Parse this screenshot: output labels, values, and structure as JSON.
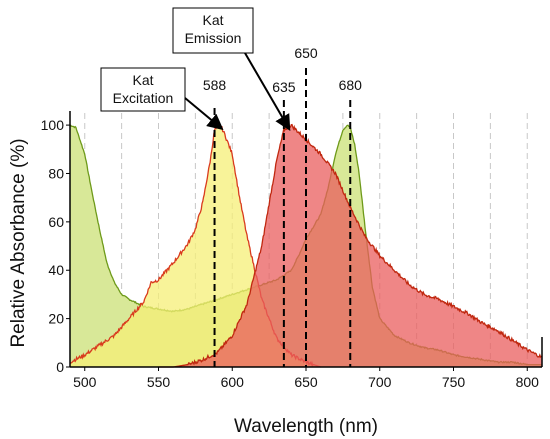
{
  "chart_data": {
    "type": "area",
    "xlabel": "Wavelength (nm)",
    "ylabel": "Relative Absorbance (%)",
    "xlim": [
      490,
      810
    ],
    "ylim": [
      0,
      105
    ],
    "x_ticks": [
      500,
      550,
      600,
      650,
      700,
      750,
      800
    ],
    "y_ticks": [
      0,
      20,
      40,
      60,
      80,
      100
    ],
    "grid_x": [
      500,
      525,
      550,
      575,
      600,
      625,
      650,
      675,
      700,
      725,
      750,
      775,
      800
    ],
    "grid": "vertical dashed",
    "series": [
      {
        "fill": "#d8e898",
        "line": "#6e9a1a",
        "x": [
          490,
          494,
          500,
          505,
          510,
          515,
          520,
          525,
          530,
          540,
          550,
          560,
          570,
          580,
          590,
          600,
          610,
          620,
          630,
          640,
          645,
          650,
          655,
          660,
          665,
          670,
          675,
          678,
          680,
          683,
          686,
          690,
          695,
          700,
          710,
          720,
          730,
          740,
          750,
          760,
          770,
          780,
          790,
          800,
          810
        ],
        "y": [
          100,
          99,
          88,
          72,
          57,
          43,
          35,
          30,
          28,
          25,
          24,
          23,
          24,
          26,
          28,
          30,
          32,
          34,
          36,
          40,
          46,
          53,
          58,
          63,
          74,
          88,
          98,
          100,
          99,
          92,
          80,
          58,
          33,
          20,
          13,
          10,
          8,
          7,
          5,
          4,
          3,
          2,
          2,
          1,
          1
        ]
      },
      {
        "fill": "#f6ef77",
        "line": "#d93b1e",
        "x": [
          490,
          500,
          510,
          520,
          530,
          540,
          545,
          550,
          560,
          570,
          575,
          580,
          585,
          588,
          592,
          595,
          600,
          605,
          610,
          620,
          630,
          640,
          650,
          660
        ],
        "y": [
          2,
          5,
          9,
          13,
          20,
          27,
          35,
          36,
          43,
          51,
          57,
          68,
          85,
          98,
          100,
          96,
          88,
          70,
          54,
          28,
          12,
          5,
          2,
          0
        ]
      },
      {
        "fill": "#ea5d5d",
        "line": "#c02810",
        "x": [
          550,
          560,
          570,
          580,
          590,
          600,
          610,
          620,
          630,
          635,
          640,
          645,
          650,
          655,
          660,
          670,
          680,
          690,
          700,
          710,
          720,
          730,
          740,
          750,
          760,
          770,
          780,
          790,
          800,
          810
        ],
        "y": [
          0,
          0,
          1,
          3,
          6,
          13,
          26,
          50,
          85,
          98,
          100,
          97,
          94,
          91,
          88,
          80,
          66,
          54,
          46,
          40,
          34,
          30,
          28,
          25,
          22,
          18,
          15,
          11,
          7,
          4
        ]
      }
    ],
    "peak_markers": [
      {
        "x": 588,
        "label": "588"
      },
      {
        "x": 635,
        "label": "635"
      },
      {
        "x": 650,
        "label": "650"
      },
      {
        "x": 680,
        "label": "680"
      }
    ],
    "callouts": [
      {
        "lines": [
          "Kat",
          "Excitation"
        ],
        "target_x": 592,
        "target_y": 99
      },
      {
        "lines": [
          "Kat",
          "Emission"
        ],
        "target_x": 638,
        "target_y": 99
      }
    ]
  }
}
